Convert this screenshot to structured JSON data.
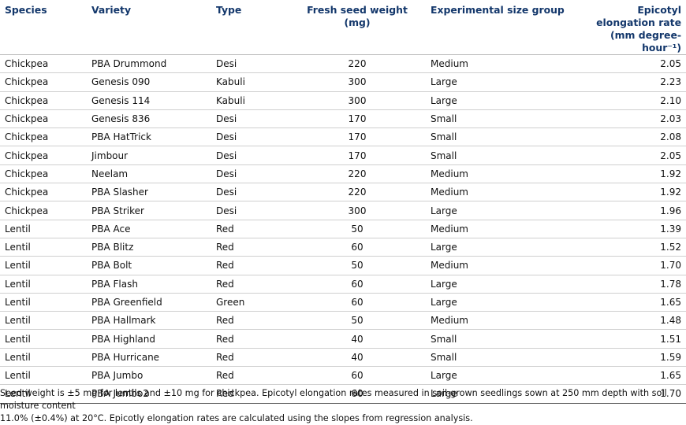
{
  "table": {
    "headers": {
      "species": "Species",
      "variety": "Variety",
      "type": "Type",
      "weight_line1": "Fresh seed weight",
      "weight_line2": "(mg)",
      "group": "Experimental size group",
      "rate_line1": "Epicotyl elongation rate",
      "rate_line2": "(mm degree-hour⁻¹)"
    },
    "rows": [
      {
        "species": "Chickpea",
        "variety": "PBA Drummond",
        "type": "Desi",
        "weight": "220",
        "group": "Medium",
        "rate": "2.05"
      },
      {
        "species": "Chickpea",
        "variety": "Genesis 090",
        "type": "Kabuli",
        "weight": "300",
        "group": "Large",
        "rate": "2.23"
      },
      {
        "species": "Chickpea",
        "variety": "Genesis 114",
        "type": "Kabuli",
        "weight": "300",
        "group": "Large",
        "rate": "2.10"
      },
      {
        "species": "Chickpea",
        "variety": "Genesis 836",
        "type": "Desi",
        "weight": "170",
        "group": "Small",
        "rate": "2.03"
      },
      {
        "species": "Chickpea",
        "variety": "PBA HatTrick",
        "type": "Desi",
        "weight": "170",
        "group": "Small",
        "rate": "2.08"
      },
      {
        "species": "Chickpea",
        "variety": "Jimbour",
        "type": "Desi",
        "weight": "170",
        "group": "Small",
        "rate": "2.05"
      },
      {
        "species": "Chickpea",
        "variety": "Neelam",
        "type": "Desi",
        "weight": "220",
        "group": "Medium",
        "rate": "1.92"
      },
      {
        "species": "Chickpea",
        "variety": "PBA Slasher",
        "type": "Desi",
        "weight": "220",
        "group": "Medium",
        "rate": "1.92"
      },
      {
        "species": "Chickpea",
        "variety": "PBA Striker",
        "type": "Desi",
        "weight": "300",
        "group": "Large",
        "rate": "1.96"
      },
      {
        "species": "Lentil",
        "variety": "PBA Ace",
        "type": "Red",
        "weight": "50",
        "group": "Medium",
        "rate": "1.39"
      },
      {
        "species": "Lentil",
        "variety": "PBA Blitz",
        "type": "Red",
        "weight": "60",
        "group": "Large",
        "rate": "1.52"
      },
      {
        "species": "Lentil",
        "variety": "PBA Bolt",
        "type": "Red",
        "weight": "50",
        "group": "Medium",
        "rate": "1.70"
      },
      {
        "species": "Lentil",
        "variety": "PBA Flash",
        "type": "Red",
        "weight": "60",
        "group": "Large",
        "rate": "1.78"
      },
      {
        "species": "Lentil",
        "variety": "PBA Greenfield",
        "type": "Green",
        "weight": "60",
        "group": "Large",
        "rate": "1.65"
      },
      {
        "species": "Lentil",
        "variety": "PBA Hallmark",
        "type": "Red",
        "weight": "50",
        "group": "Medium",
        "rate": "1.48"
      },
      {
        "species": "Lentil",
        "variety": "PBA Highland",
        "type": "Red",
        "weight": "40",
        "group": "Small",
        "rate": "1.51"
      },
      {
        "species": "Lentil",
        "variety": "PBA Hurricane",
        "type": "Red",
        "weight": "40",
        "group": "Small",
        "rate": "1.59"
      },
      {
        "species": "Lentil",
        "variety": "PBA Jumbo",
        "type": "Red",
        "weight": "60",
        "group": "Large",
        "rate": "1.65"
      },
      {
        "species": "Lentil",
        "variety": "PBA Jumbo2",
        "type": "Red",
        "weight": "60",
        "group": "Large",
        "rate": "1.70"
      }
    ]
  },
  "footnote": {
    "line1": "Seed weight is ±5 mg for lentils and ±10 mg for chickpea. Epicotyl elongation rates measured in soil-grown seedlings sown at 250 mm depth with soil moisture content",
    "line2": "11.0% (±0.4%) at 20°C. Epicotly elongation rates are calculated using the slopes from regression analysis."
  },
  "colors": {
    "header_text": "#13376b"
  }
}
